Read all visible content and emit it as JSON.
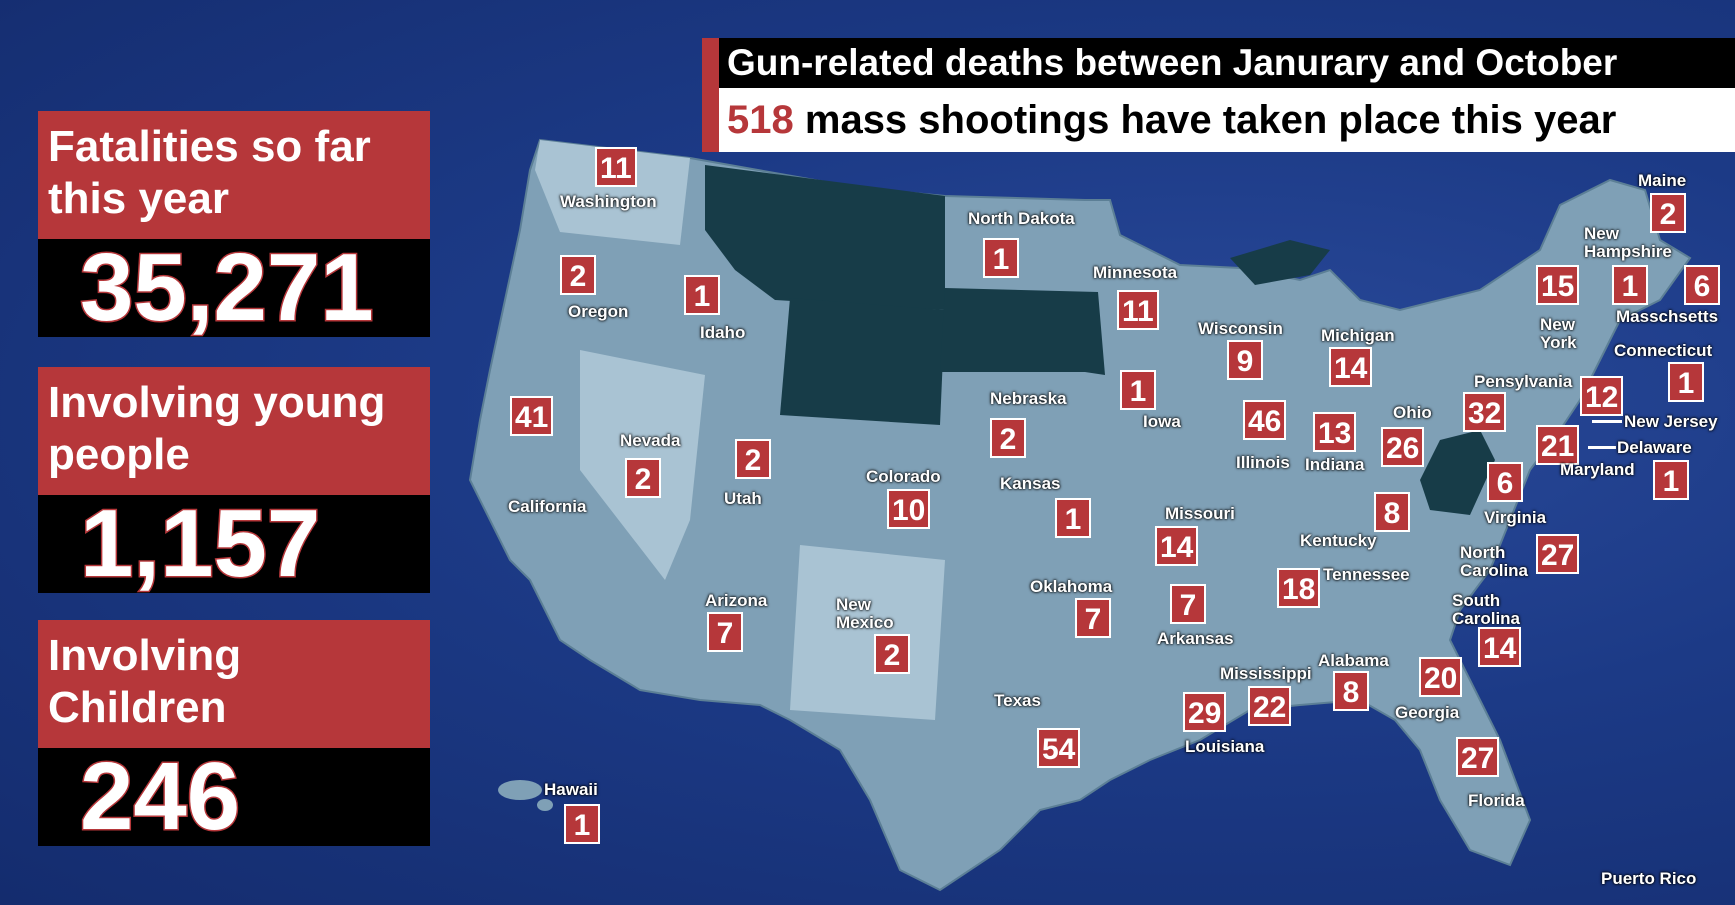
{
  "headline": {
    "title": "Gun-related deaths between Janurary and October",
    "subtitle_number": "518",
    "subtitle_text": "mass shootings have taken place this year"
  },
  "stats": [
    {
      "label": "Fatalities so far this year",
      "value": "35,271"
    },
    {
      "label": "Involving young people",
      "value": "1,157"
    },
    {
      "label": "Involving Children",
      "value": "246"
    }
  ],
  "colors": {
    "background": "#1c3a86",
    "accent_red": "#b6373a",
    "state_fill": "#7fa0b6",
    "state_fill_dark": "#173c48"
  },
  "states": [
    {
      "name": "Washington",
      "count": "11"
    },
    {
      "name": "Oregon",
      "count": "2"
    },
    {
      "name": "Idaho",
      "count": "1"
    },
    {
      "name": "California",
      "count": "41"
    },
    {
      "name": "Nevada",
      "count": "2"
    },
    {
      "name": "Utah",
      "count": "2"
    },
    {
      "name": "Arizona",
      "count": "7"
    },
    {
      "name": "Colorado",
      "count": "10"
    },
    {
      "name": "New Mexico",
      "count": "2"
    },
    {
      "name": "North Dakota",
      "count": "1"
    },
    {
      "name": "Nebraska",
      "count": "2"
    },
    {
      "name": "Kansas",
      "count": "1"
    },
    {
      "name": "Oklahoma",
      "count": "7"
    },
    {
      "name": "Texas",
      "count": "54"
    },
    {
      "name": "Minnesota",
      "count": "11"
    },
    {
      "name": "Iowa",
      "count": "1"
    },
    {
      "name": "Missouri",
      "count": "14"
    },
    {
      "name": "Arkansas",
      "count": "7"
    },
    {
      "name": "Louisiana",
      "count": "29"
    },
    {
      "name": "Wisconsin",
      "count": "9"
    },
    {
      "name": "Illinois",
      "count": "46"
    },
    {
      "name": "Michigan",
      "count": "14"
    },
    {
      "name": "Indiana",
      "count": "13"
    },
    {
      "name": "Ohio",
      "count": "26"
    },
    {
      "name": "Kentucky",
      "count": "8"
    },
    {
      "name": "Tennessee",
      "count": "18"
    },
    {
      "name": "Mississippi",
      "count": "22"
    },
    {
      "name": "Alabama",
      "count": "8"
    },
    {
      "name": "Georgia",
      "count": "20"
    },
    {
      "name": "Florida",
      "count": "27"
    },
    {
      "name": "South Carolina",
      "count": "14"
    },
    {
      "name": "North Carolina",
      "count": "27"
    },
    {
      "name": "Virginia",
      "count": "6"
    },
    {
      "name": "Pensylvania",
      "count": "32"
    },
    {
      "name": "New York",
      "count": "15"
    },
    {
      "name": "New Jersey",
      "count": "12"
    },
    {
      "name": "Delaware",
      "count": "21"
    },
    {
      "name": "Maryland",
      "count": "1"
    },
    {
      "name": "Connecticut",
      "count": "1"
    },
    {
      "name": "Masschsetts",
      "count": "6"
    },
    {
      "name": "New Hampshire",
      "count": "1"
    },
    {
      "name": "Maine",
      "count": "2"
    },
    {
      "name": "Hawaii",
      "count": "1"
    },
    {
      "name": "Puerto Rico",
      "count": ""
    }
  ]
}
